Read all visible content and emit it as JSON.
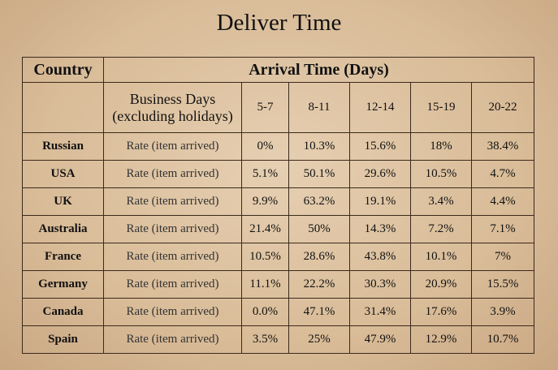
{
  "title": "Deliver Time",
  "table": {
    "header": {
      "country": "Country",
      "arrival": "Arrival Time (Days)"
    },
    "subheader": {
      "label": [
        "Business Days",
        "(excluding holidays)"
      ],
      "ranges": [
        "5-7",
        "8-11",
        "12-14",
        "15-19",
        "20-22"
      ]
    },
    "rows": [
      {
        "country": "Russian",
        "metric": "Rate (item arrived)",
        "values": [
          "0%",
          "10.3%",
          "15.6%",
          "18%",
          "38.4%"
        ]
      },
      {
        "country": "USA",
        "metric": "Rate (item arrived)",
        "values": [
          "5.1%",
          "50.1%",
          "29.6%",
          "10.5%",
          "4.7%"
        ]
      },
      {
        "country": "UK",
        "metric": "Rate (item arrived)",
        "values": [
          "9.9%",
          "63.2%",
          "19.1%",
          "3.4%",
          "4.4%"
        ]
      },
      {
        "country": "Australia",
        "metric": "Rate (item arrived)",
        "values": [
          "21.4%",
          "50%",
          "14.3%",
          "7.2%",
          "7.1%"
        ]
      },
      {
        "country": "France",
        "metric": "Rate (item arrived)",
        "values": [
          "10.5%",
          "28.6%",
          "43.8%",
          "10.1%",
          "7%"
        ]
      },
      {
        "country": "Germany",
        "metric": "Rate (item arrived)",
        "values": [
          "11.1%",
          "22.2%",
          "30.3%",
          "20.9%",
          "15.5%"
        ]
      },
      {
        "country": "Canada",
        "metric": "Rate (item arrived)",
        "values": [
          "0.0%",
          "47.1%",
          "31.4%",
          "17.6%",
          "3.9%"
        ]
      },
      {
        "country": "Spain",
        "metric": "Rate (item arrived)",
        "values": [
          "3.5%",
          "25%",
          "47.9%",
          "12.9%",
          "10.7%"
        ]
      }
    ]
  }
}
